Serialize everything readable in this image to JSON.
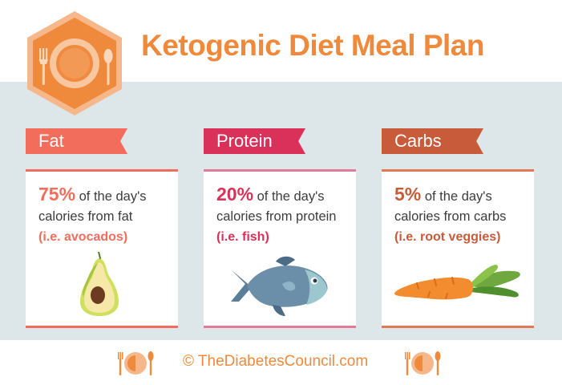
{
  "title": "Ketogenic Diet Meal Plan",
  "colors": {
    "orange": "#ef8a3c",
    "fat": "#f26d5b",
    "protein": "#d9315a",
    "carbs": "#c75b3a",
    "band": "#dde7e9",
    "text": "#3c3c3c"
  },
  "logo_icon": "plate-fork-spoon-icon",
  "cards": [
    {
      "tag": "Fat",
      "percent": "75%",
      "line1": " of the day's",
      "line2": "calories from fat",
      "example": "(i.e. avocados)",
      "icon": "avocado-icon"
    },
    {
      "tag": "Protein",
      "percent": "20%",
      "line1": " of the day's",
      "line2": "calories from protein",
      "example": "(i.e. fish)",
      "icon": "fish-icon"
    },
    {
      "tag": "Carbs",
      "percent": "5%",
      "line1": " of the day's",
      "line2": "calories from carbs",
      "example": "(i.e. root veggies)",
      "icon": "carrot-icon"
    }
  ],
  "footer": {
    "text": "© TheDiabetesCouncil.com"
  }
}
